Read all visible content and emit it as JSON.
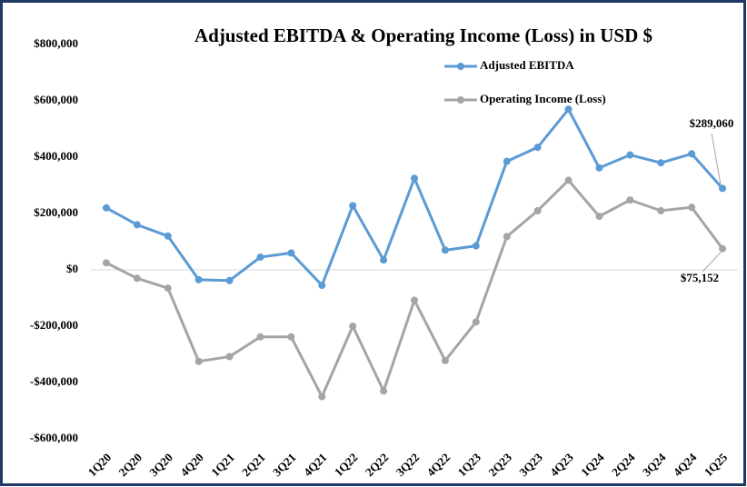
{
  "chart_data": {
    "type": "line",
    "title": "Adjusted EBITDA & Operating Income (Loss) in USD $",
    "categories": [
      "1Q20",
      "2Q20",
      "3Q20",
      "4Q20",
      "1Q21",
      "2Q21",
      "3Q21",
      "4Q21",
      "1Q22",
      "2Q22",
      "3Q22",
      "4Q22",
      "1Q23",
      "2Q23",
      "3Q23",
      "4Q23",
      "1Q24",
      "2Q24",
      "3Q24",
      "4Q24",
      "1Q25"
    ],
    "series": [
      {
        "name": "Adjusted EBITDA",
        "color": "#5b9bd5",
        "values": [
          220000,
          160000,
          120000,
          -35000,
          -38000,
          45000,
          60000,
          -55000,
          228000,
          35000,
          325000,
          70000,
          85000,
          385000,
          435000,
          570000,
          362000,
          408000,
          380000,
          412000,
          289060
        ],
        "value_labels": [
          null,
          null,
          null,
          null,
          null,
          null,
          null,
          null,
          null,
          null,
          null,
          null,
          null,
          null,
          null,
          null,
          null,
          null,
          null,
          null,
          "$289,060"
        ]
      },
      {
        "name": "Operating Income (Loss)",
        "color": "#a5a5a5",
        "values": [
          25000,
          -30000,
          -65000,
          -325000,
          -308000,
          -238000,
          -238000,
          -450000,
          -200000,
          -430000,
          -108000,
          -322000,
          -185000,
          118000,
          210000,
          318000,
          190000,
          248000,
          210000,
          222000,
          75152
        ],
        "value_labels": [
          null,
          null,
          null,
          null,
          null,
          null,
          null,
          null,
          null,
          null,
          null,
          null,
          null,
          null,
          null,
          null,
          null,
          null,
          null,
          null,
          "$75,152"
        ]
      }
    ],
    "ylim": [
      -600000,
      800000
    ],
    "yticks": [
      {
        "value": -600000,
        "label": "-$600,000"
      },
      {
        "value": -400000,
        "label": "-$400,000"
      },
      {
        "value": -200000,
        "label": "-$200,000"
      },
      {
        "value": 0,
        "label": "$0"
      },
      {
        "value": 200000,
        "label": "$200,000"
      },
      {
        "value": 400000,
        "label": "$400,000"
      },
      {
        "value": 600000,
        "label": "$600,000"
      },
      {
        "value": 800000,
        "label": "$800,000"
      }
    ],
    "grid": false
  }
}
